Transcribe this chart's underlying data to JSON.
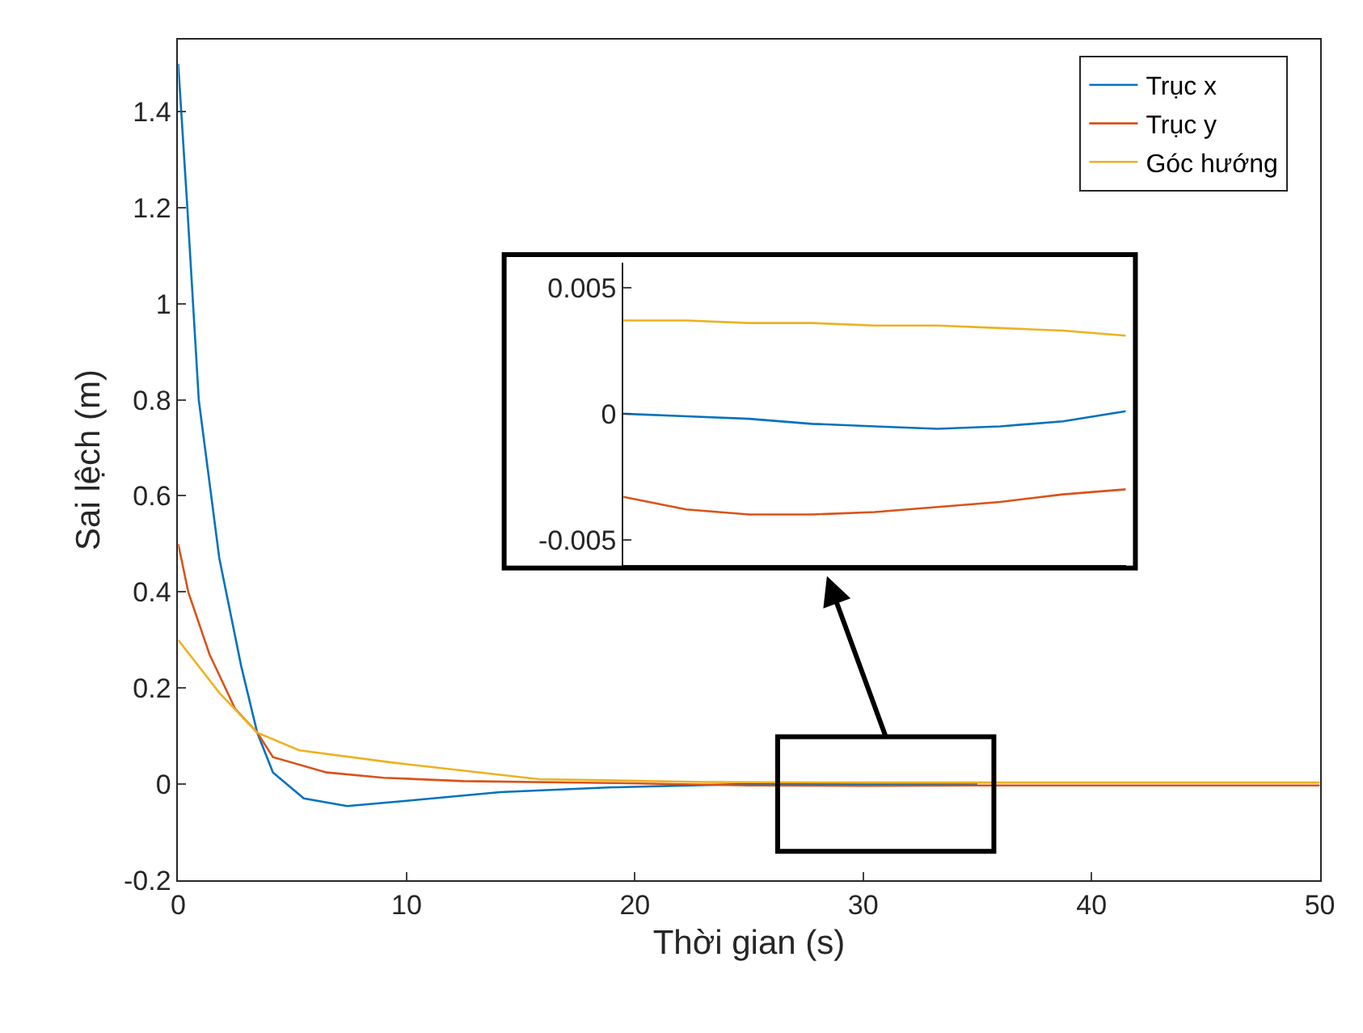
{
  "chart_data": [
    {
      "type": "line",
      "xlabel": "Thời gian (s)",
      "ylabel": "Sai lệch (m)",
      "xlim": [
        0,
        50
      ],
      "xticks": [
        0,
        10,
        20,
        30,
        40,
        50
      ],
      "ylim": [
        -0.2,
        1.55
      ],
      "yticks": [
        -0.2,
        0,
        0.2,
        0.4,
        0.6,
        0.8,
        1,
        1.2,
        1.4
      ],
      "legend": "top right",
      "series": [
        {
          "name": "Trục x",
          "color": "#0072bd",
          "x": [
            0,
            0.4,
            0.9,
            1.8,
            2.76,
            3.46,
            4.15,
            5.5,
            7.4,
            10,
            14.1,
            19,
            25,
            30,
            35
          ],
          "values": [
            1.5,
            1.2,
            0.8,
            0.47,
            0.245,
            0.107,
            0.024,
            -0.03,
            -0.046,
            -0.035,
            -0.017,
            -0.007,
            0,
            0,
            0
          ]
        },
        {
          "name": "Trục y",
          "color": "#d95319",
          "x": [
            0,
            0.44,
            1.37,
            2.5,
            3.46,
            4.15,
            6.5,
            9,
            12.5,
            19,
            25,
            30,
            35,
            40,
            50
          ],
          "values": [
            0.5,
            0.4,
            0.27,
            0.156,
            0.107,
            0.056,
            0.024,
            0.013,
            0.006,
            0.002,
            -0.003,
            -0.004,
            -0.003,
            -0.003,
            -0.003
          ]
        },
        {
          "name": "Góc hướng",
          "color": "#edb120",
          "x": [
            0,
            1.8,
            3.46,
            5.3,
            9.3,
            15.8,
            23,
            30,
            40,
            50
          ],
          "values": [
            0.3,
            0.19,
            0.107,
            0.07,
            0.045,
            0.01,
            0.004,
            0.003,
            0.003,
            0.003
          ]
        }
      ]
    },
    {
      "type": "line",
      "categories": [
        null,
        null,
        null,
        null,
        null,
        null,
        null,
        null,
        null
      ],
      "ylim": [
        -0.006,
        0.006
      ],
      "yticks": [
        -0.005,
        0,
        0.005
      ],
      "tick_labels": "y",
      "series": [
        {
          "color": "#0072bd",
          "values": [
            0,
            -0.0001,
            -0.0002,
            -0.0004,
            -0.0005,
            -0.0006,
            -0.0005,
            -0.0003,
            0.0001
          ]
        },
        {
          "color": "#d95319",
          "values": [
            -0.0033,
            -0.0038,
            -0.004,
            -0.004,
            -0.0039,
            -0.0037,
            -0.0035,
            -0.0032,
            -0.003
          ]
        },
        {
          "color": "#edb120",
          "values": [
            0.0037,
            0.0037,
            0.0036,
            0.0036,
            0.0035,
            0.0035,
            0.0034,
            0.0033,
            0.0031
          ]
        }
      ]
    }
  ]
}
